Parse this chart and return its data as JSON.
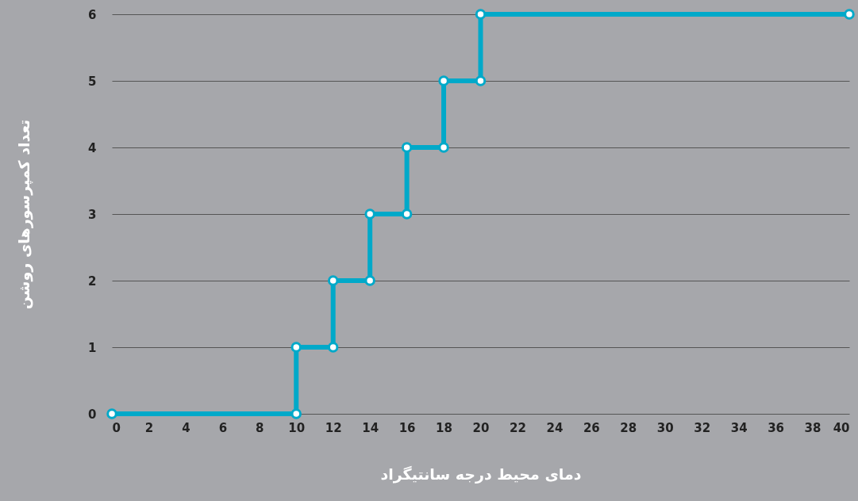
{
  "chart_data": {
    "type": "line",
    "xlabel": "دمای محیط درجه سانتیگراد",
    "ylabel": "تعداد کمپرسورهای روشن",
    "x": [
      0,
      10,
      10,
      12,
      12,
      14,
      14,
      16,
      16,
      18,
      18,
      20,
      20,
      40
    ],
    "series": [
      {
        "color": "#00a9c9",
        "values": [
          0,
          0,
          1,
          1,
          2,
          2,
          3,
          3,
          4,
          4,
          5,
          5,
          6,
          6
        ]
      }
    ],
    "xlim": [
      0,
      40
    ],
    "xticks": [
      0,
      2,
      4,
      6,
      8,
      10,
      12,
      14,
      16,
      18,
      20,
      22,
      24,
      26,
      28,
      30,
      32,
      34,
      36,
      38,
      40
    ],
    "ylim": [
      0,
      6
    ],
    "yticks": [
      0,
      1,
      2,
      3,
      4,
      5,
      6
    ],
    "grid": "y",
    "marker": "circle",
    "line_style": "solid"
  }
}
